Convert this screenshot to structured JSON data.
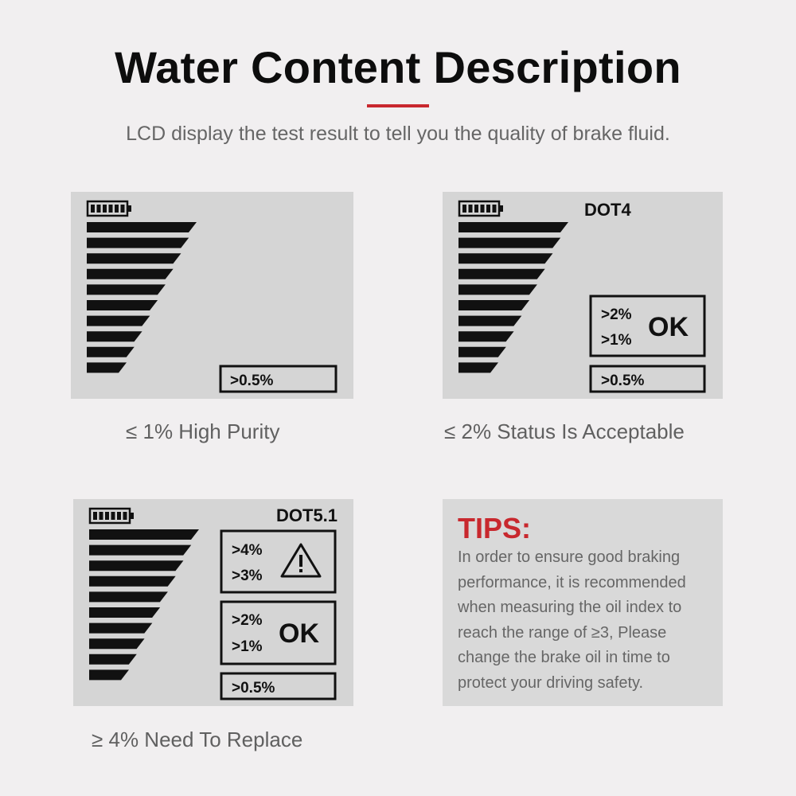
{
  "header": {
    "title": "Water Content Description",
    "subtitle": "LCD display the test result to tell you the quality of brake fluid.",
    "accent_color": "#c8282e"
  },
  "panels": [
    {
      "dot_label": "",
      "range_low": ">0.5%",
      "caption": "≤ 1% High Purity",
      "battery_icon": "battery-full-icon",
      "bar_count": 10
    },
    {
      "dot_label": "DOT4",
      "range_low": ">0.5%",
      "ok_levels": [
        ">2%",
        ">1%"
      ],
      "ok_text": "OK",
      "caption": "≤ 2% Status Is Acceptable",
      "battery_icon": "battery-full-icon",
      "bar_count": 10
    },
    {
      "dot_label": "DOT5.1",
      "range_low": ">0.5%",
      "ok_levels": [
        ">2%",
        ">1%"
      ],
      "ok_text": "OK",
      "warn_levels": [
        ">4%",
        ">3%"
      ],
      "warn_icon": "warning-triangle-icon",
      "caption": "≥ 4% Need To Replace",
      "battery_icon": "battery-full-icon",
      "bar_count": 10
    }
  ],
  "tips": {
    "heading": "TIPS:",
    "heading_color": "#c8282e",
    "body": "In order to ensure good braking performance, it is recommended when measuring the oil index to reach the range of ≥3, Please change the brake oil in time to protect your driving safety."
  }
}
